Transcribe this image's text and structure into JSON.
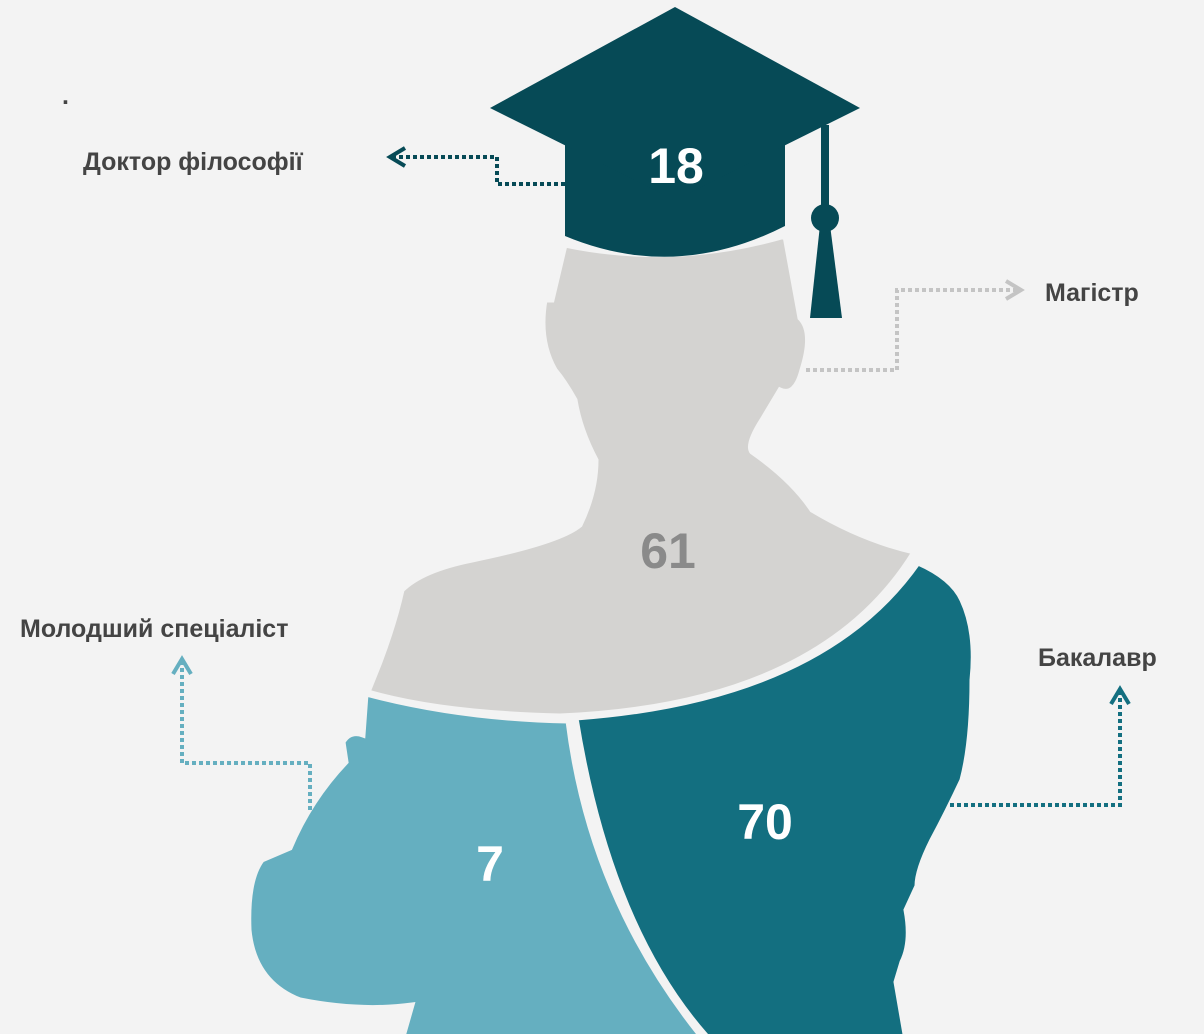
{
  "note": ".",
  "segments": [
    {
      "label": "Доктор філософії",
      "value": 18
    },
    {
      "label": "Магістр",
      "value": 61
    },
    {
      "label": "Бакалавр",
      "value": 70
    },
    {
      "label": "Молодший спеціаліст",
      "value": 7
    }
  ]
}
